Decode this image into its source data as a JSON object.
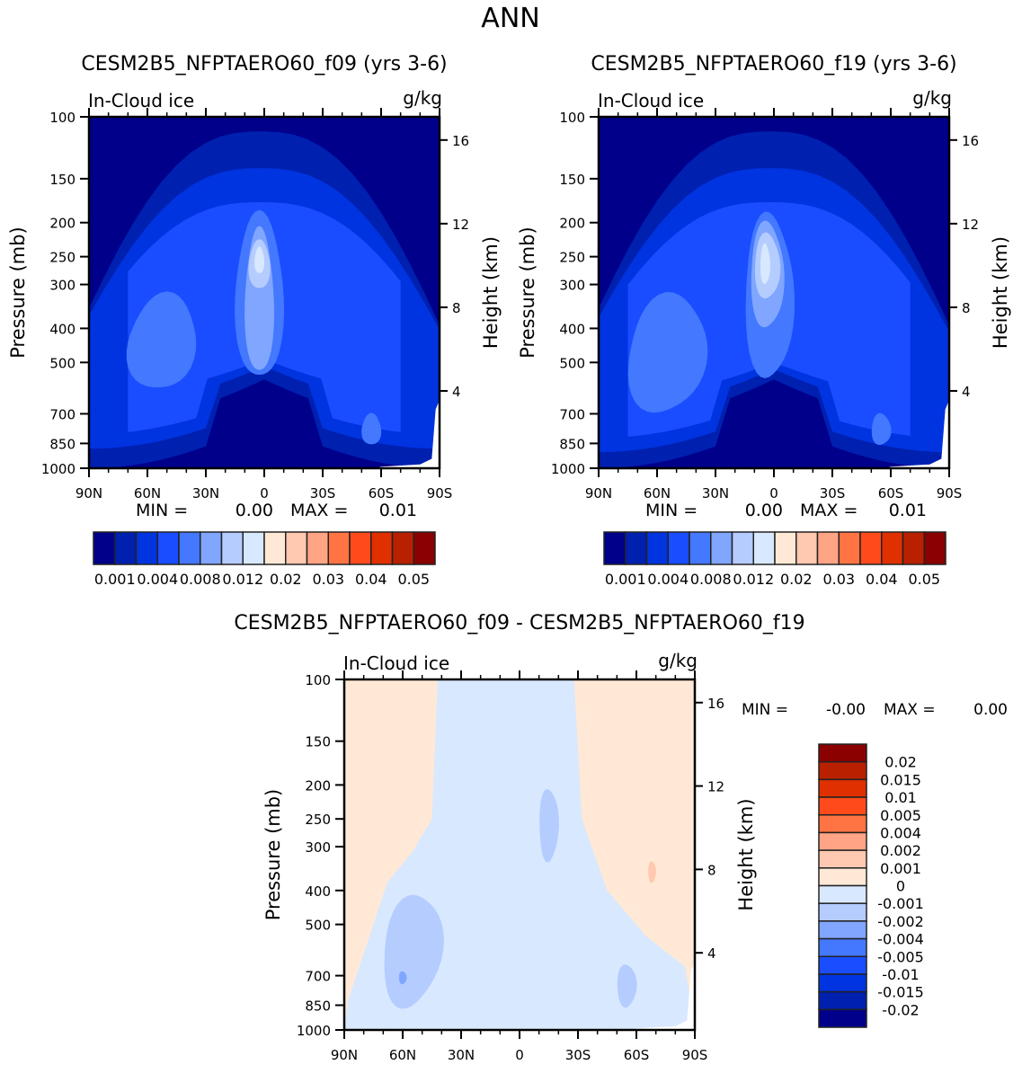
{
  "figure_title": "ANN",
  "variable_label": "In-Cloud ice",
  "units_label": "g/kg",
  "chart_data": [
    {
      "id": "panel-f09",
      "type": "heatmap",
      "subtype": "filled-contour",
      "title": "CESM2B5_NFPTAERO60_f09 (yrs 3-6)",
      "left_label": "In-Cloud ice",
      "right_label": "g/kg",
      "xlabel": "",
      "ylabel": "Pressure (mb)",
      "ylabel_right": "Height (km)",
      "x_ticks": [
        "90N",
        "60N",
        "30N",
        "0",
        "30S",
        "60S",
        "90S"
      ],
      "x_range": [
        90,
        -90
      ],
      "y_ticks": [
        100,
        150,
        200,
        250,
        300,
        400,
        500,
        700,
        850,
        1000
      ],
      "y_range": [
        100,
        1000
      ],
      "y_scale": "log-pressure",
      "y_right_ticks": [
        16,
        12,
        8,
        4
      ],
      "stats": {
        "min_label": "MIN =",
        "min_value": "0.00",
        "max_label": "MAX =",
        "max_value": "0.01"
      },
      "colorbar": {
        "orientation": "horizontal",
        "levels": [
          0.001,
          0.002,
          0.004,
          0.006,
          0.008,
          0.01,
          0.012,
          0.015,
          0.02,
          0.025,
          0.03,
          0.035,
          0.04,
          0.045,
          0.05
        ],
        "tick_labels": [
          "0.001",
          "0.004",
          "0.008",
          "0.012",
          "0.02",
          "0.03",
          "0.04",
          "0.05"
        ],
        "colors": [
          "#00008b",
          "#0020b0",
          "#0034e0",
          "#1a4dff",
          "#4378ff",
          "#80a6ff",
          "#b5ccff",
          "#d8e8ff",
          "#ffe9d6",
          "#ffc8b0",
          "#ffa585",
          "#ff7442",
          "#ff4b1c",
          "#e03000",
          "#b82000",
          "#8b0000"
        ]
      },
      "contour_regions": [
        {
          "level": 1,
          "shape": "broad-tropical-arch",
          "lat_range": [
            90,
            -90
          ],
          "p_range": [
            110,
            1000
          ]
        },
        {
          "level": 2,
          "shape": "tropical-arch",
          "lat_range": [
            90,
            -90
          ],
          "p_range": [
            140,
            880
          ]
        },
        {
          "level": 3,
          "shape": "tropical-arch",
          "lat_range": [
            70,
            -70
          ],
          "p_range": [
            175,
            800
          ]
        },
        {
          "level": 4,
          "shape": "NH-midlat-blob",
          "lat_range": [
            70,
            35
          ],
          "p_range": [
            320,
            600
          ]
        },
        {
          "level": 4,
          "shape": "tropical-core",
          "lat_range": [
            15,
            -10
          ],
          "p_range": [
            190,
            560
          ]
        },
        {
          "level": 4,
          "shape": "SH-lowlevel-blob",
          "lat_range": [
            -50,
            -60
          ],
          "p_range": [
            700,
            860
          ]
        },
        {
          "level": 5,
          "shape": "tropical-core",
          "lat_range": [
            10,
            -5
          ],
          "p_range": [
            210,
            540
          ]
        },
        {
          "level": 6,
          "shape": "tropical-core",
          "lat_range": [
            8,
            -3
          ],
          "p_range": [
            225,
            310
          ]
        },
        {
          "level": 7,
          "shape": "tropical-core",
          "lat_range": [
            5,
            0
          ],
          "p_range": [
            235,
            280
          ]
        }
      ]
    },
    {
      "id": "panel-f19",
      "type": "heatmap",
      "subtype": "filled-contour",
      "title": "CESM2B5_NFPTAERO60_f19 (yrs 3-6)",
      "left_label": "In-Cloud ice",
      "right_label": "g/kg",
      "xlabel": "",
      "ylabel": "Pressure (mb)",
      "ylabel_right": "Height (km)",
      "x_ticks": [
        "90N",
        "60N",
        "30N",
        "0",
        "30S",
        "60S",
        "90S"
      ],
      "x_range": [
        90,
        -90
      ],
      "y_ticks": [
        100,
        150,
        200,
        250,
        300,
        400,
        500,
        700,
        850,
        1000
      ],
      "y_range": [
        100,
        1000
      ],
      "y_scale": "log-pressure",
      "y_right_ticks": [
        16,
        12,
        8,
        4
      ],
      "stats": {
        "min_label": "MIN =",
        "min_value": "0.00",
        "max_label": "MAX =",
        "max_value": "0.01"
      },
      "colorbar": {
        "orientation": "horizontal",
        "levels": [
          0.001,
          0.002,
          0.004,
          0.006,
          0.008,
          0.01,
          0.012,
          0.015,
          0.02,
          0.025,
          0.03,
          0.035,
          0.04,
          0.045,
          0.05
        ],
        "tick_labels": [
          "0.001",
          "0.004",
          "0.008",
          "0.012",
          "0.02",
          "0.03",
          "0.04",
          "0.05"
        ],
        "colors": [
          "#00008b",
          "#0020b0",
          "#0034e0",
          "#1a4dff",
          "#4378ff",
          "#80a6ff",
          "#b5ccff",
          "#d8e8ff",
          "#ffe9d6",
          "#ffc8b0",
          "#ffa585",
          "#ff7442",
          "#ff4b1c",
          "#e03000",
          "#b82000",
          "#8b0000"
        ]
      },
      "contour_regions": [
        {
          "level": 1,
          "shape": "broad-tropical-arch",
          "lat_range": [
            90,
            -90
          ],
          "p_range": [
            110,
            1000
          ]
        },
        {
          "level": 2,
          "shape": "tropical-arch",
          "lat_range": [
            90,
            -90
          ],
          "p_range": [
            140,
            900
          ]
        },
        {
          "level": 3,
          "shape": "tropical-arch",
          "lat_range": [
            75,
            -70
          ],
          "p_range": [
            175,
            820
          ]
        },
        {
          "level": 4,
          "shape": "NH-midlat-blob",
          "lat_range": [
            75,
            35
          ],
          "p_range": [
            320,
            700
          ]
        },
        {
          "level": 4,
          "shape": "tropical-core",
          "lat_range": [
            15,
            -10
          ],
          "p_range": [
            190,
            560
          ]
        },
        {
          "level": 4,
          "shape": "SH-lowlevel-blob",
          "lat_range": [
            -50,
            -60
          ],
          "p_range": [
            700,
            860
          ]
        },
        {
          "level": 5,
          "shape": "tropical-core",
          "lat_range": [
            12,
            -5
          ],
          "p_range": [
            200,
            400
          ]
        },
        {
          "level": 6,
          "shape": "tropical-core",
          "lat_range": [
            10,
            -3
          ],
          "p_range": [
            215,
            330
          ]
        },
        {
          "level": 7,
          "shape": "tropical-core",
          "lat_range": [
            7,
            2
          ],
          "p_range": [
            230,
            300
          ]
        }
      ]
    },
    {
      "id": "panel-diff",
      "type": "heatmap",
      "subtype": "filled-contour",
      "title": "CESM2B5_NFPTAERO60_f09 - CESM2B5_NFPTAERO60_f19",
      "left_label": "In-Cloud ice",
      "right_label": "g/kg",
      "xlabel": "",
      "ylabel": "Pressure (mb)",
      "ylabel_right": "Height (km)",
      "x_ticks": [
        "90N",
        "60N",
        "30N",
        "0",
        "30S",
        "60S",
        "90S"
      ],
      "x_range": [
        90,
        -90
      ],
      "y_ticks": [
        100,
        150,
        200,
        250,
        300,
        400,
        500,
        700,
        850,
        1000
      ],
      "y_range": [
        100,
        1000
      ],
      "y_scale": "log-pressure",
      "y_right_ticks": [
        16,
        12,
        8,
        4
      ],
      "stats": {
        "min_label": "MIN =",
        "min_value": "-0.00",
        "max_label": "MAX =",
        "max_value": "0.00"
      },
      "colorbar": {
        "orientation": "vertical",
        "tick_labels": [
          "0.02",
          "0.015",
          "0.01",
          "0.005",
          "0.004",
          "0.002",
          "0.001",
          "0",
          "-0.001",
          "-0.002",
          "-0.004",
          "-0.005",
          "-0.01",
          "-0.015",
          "-0.02"
        ],
        "colors": [
          "#8b0000",
          "#b82000",
          "#e03000",
          "#ff4b1c",
          "#ff7442",
          "#ffa585",
          "#ffc8b0",
          "#ffe9d6",
          "#d8e8ff",
          "#b5ccff",
          "#80a6ff",
          "#4378ff",
          "#1a4dff",
          "#0034e0",
          "#0020b0",
          "#00008b"
        ]
      },
      "contour_regions": [
        {
          "range": "0 to 0.001",
          "shape": "background",
          "lat_range": [
            90,
            -90
          ],
          "p_range": [
            100,
            1000
          ]
        },
        {
          "range": "-0.001 to 0",
          "shape": "tropical-column",
          "lat_range": [
            45,
            -30
          ],
          "p_range": [
            100,
            1000
          ]
        },
        {
          "range": "-0.002 to -0.001",
          "shape": "NH-midlat-blob",
          "lat_range": [
            70,
            40
          ],
          "p_range": [
            410,
            860
          ]
        },
        {
          "range": "-0.002 to -0.001",
          "shape": "tropical-upper-blob",
          "lat_range": [
            -10,
            -20
          ],
          "p_range": [
            205,
            330
          ]
        },
        {
          "range": "-0.002 to -0.001",
          "shape": "SH-lowlevel-blob",
          "lat_range": [
            -50,
            -60
          ],
          "p_range": [
            650,
            860
          ]
        },
        {
          "range": "-0.004 to -0.002",
          "shape": "NH-small-patch",
          "lat_range": [
            62,
            58
          ],
          "p_range": [
            680,
            740
          ]
        },
        {
          "range": "0.001 to 0.002",
          "shape": "SH-small-patch",
          "lat_range": [
            -66,
            -70
          ],
          "p_range": [
            330,
            380
          ]
        }
      ]
    }
  ]
}
